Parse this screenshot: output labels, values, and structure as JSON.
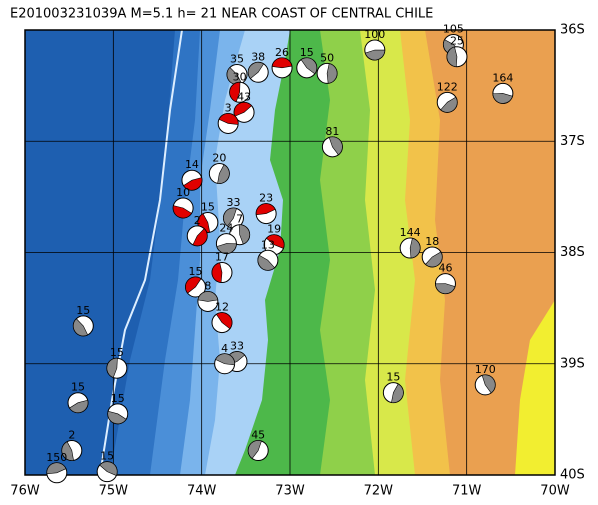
{
  "title": "E201003231039A M=5.1 h= 21 NEAR COAST OF CENTRAL CHILE",
  "map": {
    "xlim": [
      -76,
      -70
    ],
    "ylim": [
      -40,
      -36
    ],
    "grid": true,
    "xticks": [
      {
        "value": -76,
        "label": "76W"
      },
      {
        "value": -75,
        "label": "75W"
      },
      {
        "value": -74,
        "label": "74W"
      },
      {
        "value": -73,
        "label": "73W"
      },
      {
        "value": -72,
        "label": "72W"
      },
      {
        "value": -71,
        "label": "71W"
      },
      {
        "value": -70,
        "label": "70W"
      }
    ],
    "yticks": [
      {
        "value": -36,
        "label": "36S"
      },
      {
        "value": -37,
        "label": "37S"
      },
      {
        "value": -38,
        "label": "38S"
      },
      {
        "value": -39,
        "label": "39S"
      },
      {
        "value": -40,
        "label": "40S"
      }
    ],
    "events": [
      {
        "lon": -72.04,
        "lat": -36.18,
        "depth": 100,
        "color": "#888888"
      },
      {
        "lon": -71.15,
        "lat": -36.13,
        "depth": 105,
        "color": "#888888"
      },
      {
        "lon": -71.11,
        "lat": -36.24,
        "depth": 25,
        "color": "#888888"
      },
      {
        "lon": -73.36,
        "lat": -36.38,
        "depth": 38,
        "color": "#888888"
      },
      {
        "lon": -73.09,
        "lat": -36.34,
        "depth": 26,
        "color": "#e00000"
      },
      {
        "lon": -72.81,
        "lat": -36.34,
        "depth": 15,
        "color": "#888888"
      },
      {
        "lon": -72.58,
        "lat": -36.39,
        "depth": 50,
        "color": "#888888"
      },
      {
        "lon": -71.22,
        "lat": -36.65,
        "depth": 122,
        "color": "#888888"
      },
      {
        "lon": -70.59,
        "lat": -36.57,
        "depth": 164,
        "color": "#888888"
      },
      {
        "lon": -73.6,
        "lat": -36.4,
        "depth": 35,
        "color": "#888888"
      },
      {
        "lon": -73.57,
        "lat": -36.56,
        "depth": 30,
        "color": "#e00000"
      },
      {
        "lon": -73.52,
        "lat": -36.74,
        "depth": 43,
        "color": "#e00000"
      },
      {
        "lon": -73.7,
        "lat": -36.84,
        "depth": 3,
        "color": "#e00000"
      },
      {
        "lon": -72.52,
        "lat": -37.05,
        "depth": 81,
        "color": "#888888"
      },
      {
        "lon": -73.8,
        "lat": -37.29,
        "depth": 20,
        "color": "#888888"
      },
      {
        "lon": -74.11,
        "lat": -37.35,
        "depth": 14,
        "color": "#e00000"
      },
      {
        "lon": -74.21,
        "lat": -37.6,
        "depth": 10,
        "color": "#e00000"
      },
      {
        "lon": -73.93,
        "lat": -37.73,
        "depth": 15,
        "color": "#e00000"
      },
      {
        "lon": -73.64,
        "lat": -37.69,
        "depth": 33,
        "color": "#888888"
      },
      {
        "lon": -73.27,
        "lat": -37.65,
        "depth": 23,
        "color": "#e00000"
      },
      {
        "lon": -73.18,
        "lat": -37.93,
        "depth": 19,
        "color": "#e00000"
      },
      {
        "lon": -73.57,
        "lat": -37.84,
        "depth": 7,
        "color": "#888888"
      },
      {
        "lon": -74.05,
        "lat": -37.85,
        "depth": 2,
        "color": "#e00000"
      },
      {
        "lon": -73.72,
        "lat": -37.92,
        "depth": 24,
        "color": "#888888"
      },
      {
        "lon": -73.25,
        "lat": -38.07,
        "depth": 13,
        "color": "#888888"
      },
      {
        "lon": -73.77,
        "lat": -38.18,
        "depth": 17,
        "color": "#e00000"
      },
      {
        "lon": -74.07,
        "lat": -38.31,
        "depth": 15,
        "color": "#e00000"
      },
      {
        "lon": -73.93,
        "lat": -38.44,
        "depth": 8,
        "color": "#888888"
      },
      {
        "lon": -73.77,
        "lat": -38.63,
        "depth": 12,
        "color": "#e00000"
      },
      {
        "lon": -71.64,
        "lat": -37.96,
        "depth": 144,
        "color": "#888888"
      },
      {
        "lon": -71.39,
        "lat": -38.04,
        "depth": 18,
        "color": "#888888"
      },
      {
        "lon": -71.24,
        "lat": -38.28,
        "depth": 46,
        "color": "#888888"
      },
      {
        "lon": -75.34,
        "lat": -38.66,
        "depth": 15,
        "color": "#888888"
      },
      {
        "lon": -74.96,
        "lat": -39.04,
        "depth": 15,
        "color": "#888888"
      },
      {
        "lon": -73.6,
        "lat": -38.98,
        "depth": 33,
        "color": "#888888"
      },
      {
        "lon": -73.74,
        "lat": -39.0,
        "depth": 4,
        "color": "#888888"
      },
      {
        "lon": -70.79,
        "lat": -39.19,
        "depth": 170,
        "color": "#888888"
      },
      {
        "lon": -71.83,
        "lat": -39.26,
        "depth": 15,
        "color": "#888888"
      },
      {
        "lon": -75.4,
        "lat": -39.35,
        "depth": 15,
        "color": "#888888"
      },
      {
        "lon": -74.95,
        "lat": -39.45,
        "depth": 15,
        "color": "#888888"
      },
      {
        "lon": -75.47,
        "lat": -39.78,
        "depth": 2,
        "color": "#888888"
      },
      {
        "lon": -73.36,
        "lat": -39.78,
        "depth": 45,
        "color": "#888888"
      },
      {
        "lon": -75.64,
        "lat": -39.98,
        "depth": 150,
        "color": "#888888"
      },
      {
        "lon": -75.07,
        "lat": -39.97,
        "depth": 15,
        "color": "#888888"
      }
    ]
  }
}
